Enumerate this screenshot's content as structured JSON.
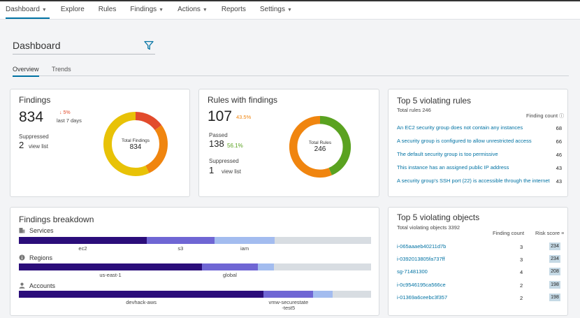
{
  "nav": {
    "items": [
      {
        "label": "Dashboard",
        "dropdown": true,
        "active": true
      },
      {
        "label": "Explore",
        "dropdown": false
      },
      {
        "label": "Rules",
        "dropdown": false
      },
      {
        "label": "Findings",
        "dropdown": true
      },
      {
        "label": "Actions",
        "dropdown": true
      },
      {
        "label": "Reports",
        "dropdown": false
      },
      {
        "label": "Settings",
        "dropdown": true
      }
    ]
  },
  "page": {
    "title": "Dashboard",
    "filter_icon": "filter-icon"
  },
  "tabs": [
    {
      "label": "Overview",
      "active": true
    },
    {
      "label": "Trends",
      "active": false
    }
  ],
  "colors": {
    "accent": "#0072a3",
    "red": "#e24b2c",
    "orange": "#f0850f",
    "yellow": "#e8c207",
    "green": "#5aa220",
    "navy": "#2b0d7a",
    "purple": "#6f66d4",
    "lightblue": "#a3bcef",
    "grey": "#d8dde2",
    "risk_bg": "#c5d9e5"
  },
  "findings": {
    "title": "Findings",
    "count": "834",
    "delta": "↓ 5%",
    "delta_sub": "last 7 days",
    "suppressed_label": "Suppressed",
    "suppressed_count": "2",
    "view_list": "view list",
    "donut_label": "Total Findings",
    "donut_value": "834",
    "donut_segments": [
      {
        "name": "critical",
        "value": 0.15,
        "color": "#e24b2c"
      },
      {
        "name": "high",
        "value": 0.28,
        "color": "#f0850f"
      },
      {
        "name": "medium",
        "value": 0.57,
        "color": "#e8c207"
      }
    ]
  },
  "rules": {
    "title": "Rules with findings",
    "count": "107",
    "percent": "43.5%",
    "passed_label": "Passed",
    "passed_count": "138",
    "passed_percent": "56.1%",
    "suppressed_label": "Suppressed",
    "suppressed_count": "1",
    "view_list": "view list",
    "donut_label": "Total Rules",
    "donut_value": "246",
    "donut_segments": [
      {
        "name": "with-findings",
        "value": 0.435,
        "color": "#5aa220"
      },
      {
        "name": "passed",
        "value": 0.561,
        "color": "#f0850f"
      }
    ]
  },
  "top_rules": {
    "title": "Top 5 violating rules",
    "total": "Total rules 246",
    "count_header": "Finding count",
    "rows": [
      {
        "rule": "An EC2 security group does not contain any instances",
        "count": "68"
      },
      {
        "rule": "A security group is configured to allow unrestricted access",
        "count": "66"
      },
      {
        "rule": "The default security group is too permissive",
        "count": "46"
      },
      {
        "rule": "This instance has an assigned public IP address",
        "count": "43"
      },
      {
        "rule": "A security group's SSH port (22) is accessible through the internet",
        "count": "43"
      }
    ]
  },
  "breakdown": {
    "title": "Findings breakdown",
    "sections": [
      {
        "label": "Services",
        "icon": "building-icon",
        "segments": [
          {
            "label": "ec2",
            "value": 0.363,
            "color": "#2b0d7a"
          },
          {
            "label": "s3",
            "value": 0.192,
            "color": "#6f66d4"
          },
          {
            "label": "iam",
            "value": 0.172,
            "color": "#a3bcef"
          },
          {
            "label": "",
            "value": 0.273,
            "color": "#d8dde2"
          }
        ]
      },
      {
        "label": "Regions",
        "icon": "info-circle-icon",
        "segments": [
          {
            "label": "us-east-1",
            "value": 0.52,
            "color": "#2b0d7a"
          },
          {
            "label": "global",
            "value": 0.158,
            "color": "#6f66d4"
          },
          {
            "label": "",
            "value": 0.046,
            "color": "#a3bcef"
          },
          {
            "label": "",
            "value": 0.276,
            "color": "#d8dde2"
          }
        ]
      },
      {
        "label": "Accounts",
        "icon": "user-icon",
        "segments": [
          {
            "label": "devhack-aws",
            "value": 0.695,
            "color": "#2b0d7a"
          },
          {
            "label": "vmw-securestate -test5",
            "value": 0.141,
            "color": "#6f66d4"
          },
          {
            "label": "",
            "value": 0.054,
            "color": "#a3bcef"
          },
          {
            "label": "",
            "value": 0.11,
            "color": "#d8dde2"
          }
        ]
      }
    ]
  },
  "top_objects": {
    "title": "Top 5 violating objects",
    "total": "Total violating objects 3392",
    "count_header": "Finding count",
    "risk_header": "Risk score",
    "rows": [
      {
        "object": "i-065aaaeb40211d7b",
        "count": "3",
        "risk": "234"
      },
      {
        "object": "i-0392013805fa737ff",
        "count": "3",
        "risk": "234"
      },
      {
        "object": "sg-71481300",
        "count": "4",
        "risk": "208"
      },
      {
        "object": "i-0c9546195ca566ce",
        "count": "2",
        "risk": "198"
      },
      {
        "object": "i-01369a6ceebc3f357",
        "count": "2",
        "risk": "198"
      }
    ]
  }
}
